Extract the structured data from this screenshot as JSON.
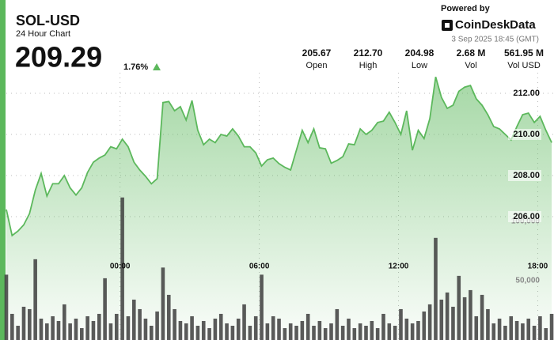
{
  "header": {
    "title": "SOL-USD",
    "subtitle": "24 Hour Chart",
    "price": "209.29",
    "change": "1.76%"
  },
  "branding": {
    "powered_by": "Powered by",
    "logo": "CoinDeskData",
    "timestamp": "3 Sep 2025 18:45 (GMT)"
  },
  "stats": [
    {
      "value": "205.67",
      "label": "Open"
    },
    {
      "value": "212.70",
      "label": "High"
    },
    {
      "value": "204.98",
      "label": "Low"
    },
    {
      "value": "2.68 M",
      "label": "Vol"
    },
    {
      "value": "561.95 M",
      "label": "Vol USD"
    }
  ],
  "chart_data": {
    "type": "area",
    "x": [
      -4.9,
      -4.65,
      -4.4,
      -4.15,
      -3.9,
      -3.65,
      -3.4,
      -3.15,
      -2.9,
      -2.65,
      -2.4,
      -2.15,
      -1.9,
      -1.65,
      -1.4,
      -1.15,
      -0.9,
      -0.65,
      -0.4,
      -0.15,
      0.1,
      0.35,
      0.6,
      0.85,
      1.1,
      1.35,
      1.6,
      1.85,
      2.1,
      2.35,
      2.6,
      2.85,
      3.1,
      3.35,
      3.6,
      3.85,
      4.1,
      4.35,
      4.6,
      4.85,
      5.1,
      5.35,
      5.6,
      5.85,
      6.1,
      6.35,
      6.6,
      6.85,
      7.1,
      7.35,
      7.6,
      7.85,
      8.1,
      8.35,
      8.6,
      8.85,
      9.1,
      9.35,
      9.6,
      9.85,
      10.1,
      10.35,
      10.6,
      10.85,
      11.1,
      11.35,
      11.6,
      11.85,
      12.1,
      12.35,
      12.6,
      12.85,
      13.1,
      13.35,
      13.6,
      13.85,
      14.1,
      14.35,
      14.6,
      14.85,
      15.1,
      15.35,
      15.6,
      15.85,
      16.1,
      16.35,
      16.6,
      16.85,
      17.1,
      17.35,
      17.6,
      17.85,
      18.1,
      18.35,
      18.6
    ],
    "series": [
      {
        "color": "#5cb85c",
        "values": [
          206.35,
          205.08,
          205.3,
          205.6,
          206.15,
          207.3,
          208.1,
          207.0,
          207.6,
          207.6,
          208.0,
          207.4,
          207.05,
          207.4,
          208.15,
          208.65,
          208.85,
          209.0,
          209.4,
          209.3,
          209.77,
          209.4,
          208.65,
          208.27,
          207.96,
          207.6,
          207.85,
          211.55,
          211.6,
          211.15,
          211.35,
          210.7,
          211.65,
          210.2,
          209.5,
          209.77,
          209.6,
          210.0,
          209.92,
          210.27,
          209.92,
          209.4,
          209.4,
          209.1,
          208.46,
          208.77,
          208.85,
          208.58,
          208.4,
          208.27,
          209.23,
          210.2,
          209.6,
          210.27,
          209.35,
          209.3,
          208.6,
          208.73,
          208.92,
          209.54,
          209.5,
          210.27,
          210.0,
          210.2,
          210.58,
          210.65,
          211.08,
          210.58,
          210.0,
          211.15,
          209.23,
          210.2,
          209.8,
          210.77,
          212.8,
          211.8,
          211.27,
          211.42,
          212.1,
          212.3,
          212.38,
          211.73,
          211.42,
          210.96,
          210.38,
          210.27,
          210.0,
          209.73,
          210.38,
          210.96,
          211.04,
          210.58,
          210.88,
          210.2,
          209.6
        ]
      },
      {
        "type": "bar",
        "axis": "y2",
        "color": "#3d3d3d",
        "values": [
          55000,
          22000,
          12000,
          28000,
          26000,
          68000,
          18000,
          14000,
          20000,
          16000,
          30000,
          14000,
          18000,
          10000,
          20000,
          16000,
          22000,
          52000,
          14000,
          22000,
          120000,
          20000,
          34000,
          26000,
          18000,
          12000,
          24000,
          61000,
          38000,
          26000,
          16000,
          14000,
          20000,
          12000,
          16000,
          10000,
          18000,
          22000,
          14000,
          12000,
          18000,
          30000,
          12000,
          20000,
          55000,
          14000,
          20000,
          18000,
          10000,
          14000,
          12000,
          16000,
          22000,
          12000,
          16000,
          10000,
          14000,
          26000,
          12000,
          18000,
          10000,
          14000,
          12000,
          16000,
          10000,
          22000,
          14000,
          12000,
          26000,
          18000,
          14000,
          16000,
          24000,
          30000,
          86000,
          34000,
          40000,
          28000,
          54000,
          36000,
          42000,
          20000,
          38000,
          26000,
          14000,
          18000,
          12000,
          20000,
          16000,
          14000,
          18000,
          12000,
          20000,
          10000,
          22000
        ]
      }
    ],
    "xlim": [
      -4.9,
      18.7
    ],
    "xticks": [
      {
        "value": 0,
        "label": "00:00"
      },
      {
        "value": 6,
        "label": "06:00"
      },
      {
        "value": 12,
        "label": "12:00"
      },
      {
        "value": 18,
        "label": "18:00"
      }
    ],
    "ylim": [
      200,
      213
    ],
    "yticks": [
      {
        "value": 206,
        "label": "206.00"
      },
      {
        "value": 208,
        "label": "208.00"
      },
      {
        "value": 210,
        "label": "210.00"
      },
      {
        "value": 212,
        "label": "212.00"
      }
    ],
    "y2lim": [
      0,
      225000
    ],
    "y2ticks": [
      {
        "value": 50000,
        "label": "50,000"
      },
      {
        "value": 100000,
        "label": "100,000"
      }
    ],
    "grid": true
  }
}
